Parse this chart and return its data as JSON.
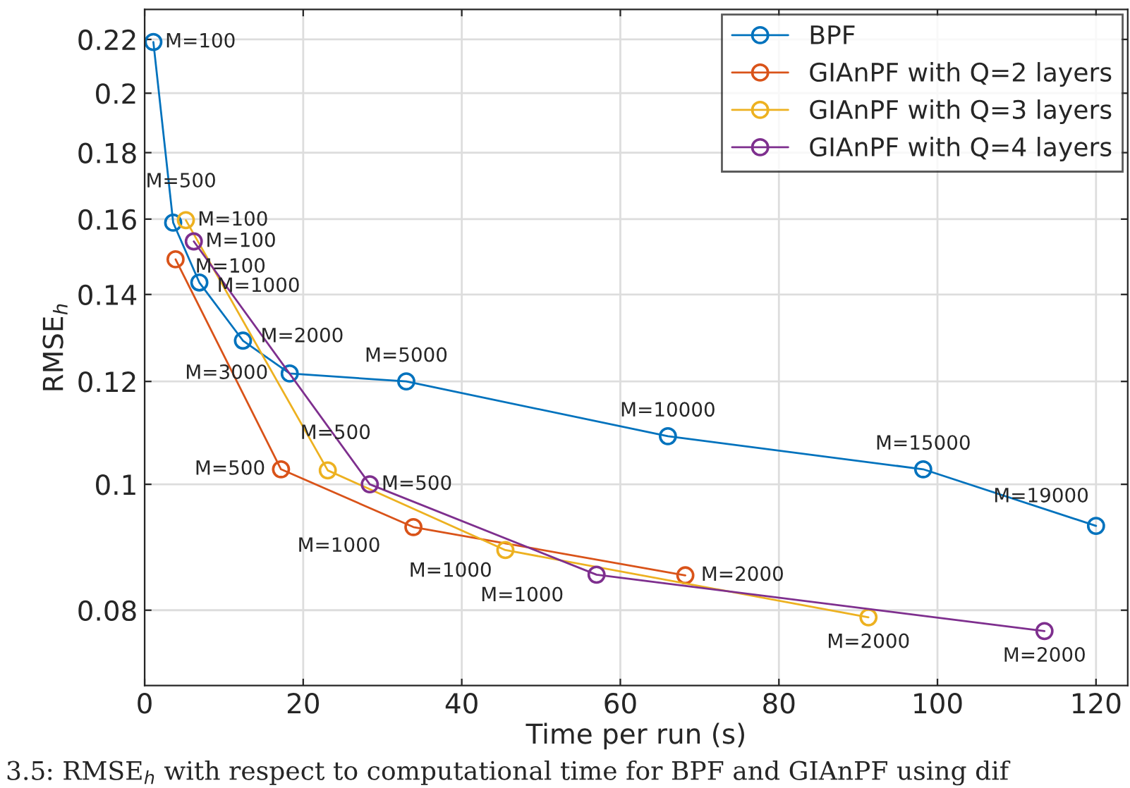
{
  "chart_data": {
    "type": "line",
    "xlabel": "Time per run (s)",
    "ylabel": "RMSE$_{h}$",
    "log": "y",
    "xlim": [
      0,
      124
    ],
    "xticks": [
      0,
      20,
      40,
      60,
      80,
      100,
      120
    ],
    "ylim": [
      0.07,
      0.232
    ],
    "yticks": [
      0.08,
      0.1,
      0.12,
      0.14,
      0.16,
      0.18,
      0.2,
      0.22
    ],
    "grid": true,
    "legend": "top right",
    "marker": "circle",
    "line_style": "solid",
    "series": [
      {
        "name": "BPF",
        "color": "#0072bd",
        "x": [
          1.1,
          3.6,
          6.9,
          12.4,
          18.3,
          33,
          66,
          98.2,
          120
        ],
        "values": [
          0.219,
          0.159,
          0.143,
          0.129,
          0.1217,
          0.12,
          0.1089,
          0.1027,
          0.0929
        ]
      },
      {
        "name": "GIAnPF with Q=2 layers",
        "color": "#d95319",
        "x": [
          3.9,
          17.2,
          33.9,
          68.2
        ],
        "values": [
          0.149,
          0.1027,
          0.0927,
          0.0851
        ]
      },
      {
        "name": "GIAnPF with Q=3 layers",
        "color": "#edb120",
        "x": [
          5.2,
          23.1,
          45.5,
          91.3
        ],
        "values": [
          0.1597,
          0.1025,
          0.089,
          0.079
        ]
      },
      {
        "name": "GIAnPF with Q=4 layers",
        "color": "#7e2f8e",
        "x": [
          6.2,
          28.4,
          57,
          113.5
        ],
        "values": [
          0.1538,
          0.1,
          0.0852,
          0.0771
        ]
      }
    ],
    "annotations": [
      {
        "text": "M=100",
        "x": 1.1,
        "y": 0.219
      },
      {
        "text": "M=500",
        "x": 3.6,
        "y": 0.159
      },
      {
        "text": "M=1000",
        "x": 6.9,
        "y": 0.143
      },
      {
        "text": "M=2000",
        "x": 12.4,
        "y": 0.129
      },
      {
        "text": "M=3000",
        "x": 18.3,
        "y": 0.1217
      },
      {
        "text": "M=5000",
        "x": 33,
        "y": 0.12
      },
      {
        "text": "M=10000",
        "x": 66,
        "y": 0.1089
      },
      {
        "text": "M=15000",
        "x": 98.2,
        "y": 0.1027
      },
      {
        "text": "M=19000",
        "x": 120,
        "y": 0.0929
      },
      {
        "text": "M=100",
        "x": 3.9,
        "y": 0.149
      },
      {
        "text": "M=500",
        "x": 17.2,
        "y": 0.1027
      },
      {
        "text": "M=1000",
        "x": 33.9,
        "y": 0.0927
      },
      {
        "text": "M=2000",
        "x": 68.2,
        "y": 0.0851
      },
      {
        "text": "M=100",
        "x": 5.2,
        "y": 0.1597
      },
      {
        "text": "M=500",
        "x": 23.1,
        "y": 0.1025
      },
      {
        "text": "M=1000",
        "x": 45.5,
        "y": 0.089
      },
      {
        "text": "M=2000",
        "x": 91.3,
        "y": 0.079
      },
      {
        "text": "M=100",
        "x": 6.2,
        "y": 0.1538
      },
      {
        "text": "M=500",
        "x": 28.4,
        "y": 0.1
      },
      {
        "text": "M=1000",
        "x": 57,
        "y": 0.0852
      },
      {
        "text": "M=2000",
        "x": 113.5,
        "y": 0.0771
      },
      "3.5: RMSE$_{h}$ with respect to computational time for BPF and GIAnPF using dif"
    ]
  }
}
